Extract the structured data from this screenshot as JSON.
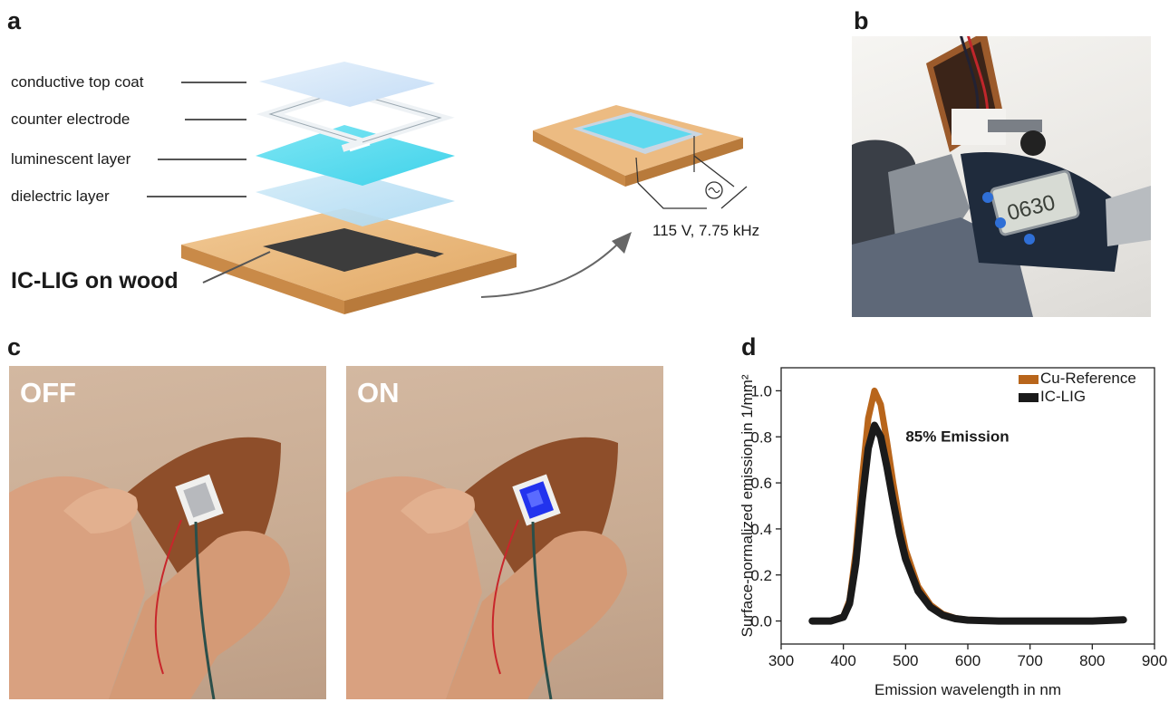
{
  "panels": {
    "a": {
      "letter": "a",
      "layers": [
        "conductive top coat",
        "counter electrode",
        "luminescent layer",
        "dielectric layer"
      ],
      "substrate_label": "IC-LIG on wood",
      "drive_label": "115 V, 7.75 kHz"
    },
    "b": {
      "letter": "b"
    },
    "c": {
      "letter": "c",
      "off_label": "OFF",
      "on_label": "ON"
    },
    "d": {
      "letter": "d",
      "annotation": "85% Emission"
    }
  },
  "colors": {
    "cu_reference": "#b8651b",
    "ic_lig": "#1a1a1a",
    "luminescent": "#4fd9ee",
    "wood": "#e7b57c",
    "el_glow": "#2233ee"
  },
  "chart_data": {
    "type": "line",
    "title": "",
    "xlabel": "Emission wavelength in nm",
    "ylabel": "Surface-normalized emission in 1/mm²",
    "xlim": [
      300,
      900
    ],
    "ylim": [
      -0.1,
      1.1
    ],
    "xticks": [
      300,
      400,
      500,
      600,
      700,
      800,
      900
    ],
    "yticks": [
      0.0,
      0.2,
      0.4,
      0.6,
      0.8,
      1.0
    ],
    "xtick_labels": [
      "300",
      "400",
      "500",
      "600",
      "700",
      "800",
      "900"
    ],
    "ytick_labels": [
      "0.0",
      "0.2",
      "0.4",
      "0.6",
      "0.8",
      "1.0"
    ],
    "legend_position": "top-right",
    "grid": false,
    "series": [
      {
        "name": "Cu-Reference",
        "color": "#b8651b",
        "x": [
          350,
          380,
          400,
          410,
          420,
          430,
          440,
          450,
          460,
          470,
          480,
          490,
          500,
          520,
          540,
          560,
          580,
          600,
          650,
          700,
          750,
          800,
          850
        ],
        "y": [
          0.0,
          0.0,
          0.02,
          0.09,
          0.3,
          0.62,
          0.88,
          1.0,
          0.94,
          0.78,
          0.6,
          0.44,
          0.31,
          0.15,
          0.07,
          0.03,
          0.012,
          0.005,
          0.0,
          0.0,
          0.0,
          0.0,
          0.005
        ]
      },
      {
        "name": "IC-LIG",
        "color": "#1a1a1a",
        "x": [
          350,
          380,
          400,
          410,
          420,
          430,
          440,
          450,
          460,
          470,
          480,
          490,
          500,
          520,
          540,
          560,
          580,
          600,
          650,
          700,
          750,
          800,
          850
        ],
        "y": [
          0.0,
          0.0,
          0.017,
          0.076,
          0.25,
          0.52,
          0.75,
          0.85,
          0.8,
          0.67,
          0.52,
          0.38,
          0.27,
          0.13,
          0.06,
          0.025,
          0.01,
          0.004,
          0.0,
          0.0,
          0.0,
          0.0,
          0.005
        ]
      }
    ]
  }
}
